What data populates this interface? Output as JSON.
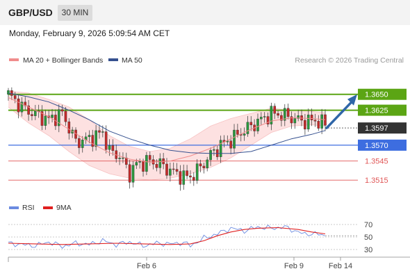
{
  "header": {
    "pair": "GBP/USD",
    "timeframe": "30 MIN"
  },
  "datetime": "Monday, February 9, 2026 5:09:54 AM CET",
  "legend": {
    "ma_bb": "MA 20 + Bollinger Bands",
    "ma50": "MA 50",
    "rsi": "RSI",
    "ma9": "9MA"
  },
  "credit": "Research © 2026 Trading Central",
  "colors": {
    "bb_fill": "#fde1e1",
    "ma20": "#f08c8c",
    "ma50": "#35508f",
    "resistance": "#5ba514",
    "support_blue": "#3d6de0",
    "support_red": "#e05555",
    "current": "#333333",
    "arrow": "#2f66a8",
    "rsi": "#6b8be0",
    "ma9": "#e02020",
    "candle_up": "#2a9a3e",
    "candle_down": "#c52a2a"
  },
  "chart_data": [
    {
      "type": "candlestick",
      "title": "",
      "ylim": [
        1.349,
        1.3665
      ],
      "x_ticks": [
        "Feb 6",
        "Feb 9",
        "Feb 14"
      ],
      "levels": [
        {
          "value": 1.365,
          "label": "1.3650",
          "kind": "resistance"
        },
        {
          "value": 1.3625,
          "label": "1.3625",
          "kind": "resistance"
        },
        {
          "value": 1.3597,
          "label": "1.3597",
          "kind": "current"
        },
        {
          "value": 1.357,
          "label": "1.3570",
          "kind": "pivot"
        },
        {
          "value": 1.3545,
          "label": "1.3545",
          "kind": "support"
        },
        {
          "value": 1.3515,
          "label": "1.3515",
          "kind": "support"
        }
      ],
      "last_price": 1.3597,
      "target_price": 1.365,
      "close_path": [
        [
          0,
          1.365
        ],
        [
          4,
          1.363
        ],
        [
          8,
          1.3618
        ],
        [
          12,
          1.361
        ],
        [
          16,
          1.362
        ],
        [
          20,
          1.3575
        ],
        [
          24,
          1.358
        ],
        [
          28,
          1.359
        ],
        [
          30,
          1.356
        ],
        [
          33,
          1.3553
        ],
        [
          36,
          1.3525
        ],
        [
          38,
          1.354
        ],
        [
          42,
          1.3545
        ],
        [
          45,
          1.354
        ],
        [
          48,
          1.353
        ],
        [
          52,
          1.352
        ],
        [
          54,
          1.352
        ],
        [
          57,
          1.3535
        ],
        [
          60,
          1.3555
        ],
        [
          63,
          1.357
        ],
        [
          66,
          1.3578
        ],
        [
          69,
          1.359
        ],
        [
          72,
          1.36
        ],
        [
          75,
          1.361
        ],
        [
          78,
          1.362
        ],
        [
          81,
          1.3618
        ],
        [
          84,
          1.3613
        ],
        [
          87,
          1.3608
        ],
        [
          90,
          1.3608
        ],
        [
          92,
          1.3608
        ],
        [
          94,
          1.3602
        ]
      ],
      "ma50": [
        [
          0,
          1.3652
        ],
        [
          6,
          1.3646
        ],
        [
          12,
          1.3638
        ],
        [
          18,
          1.3625
        ],
        [
          24,
          1.361
        ],
        [
          30,
          1.3592
        ],
        [
          36,
          1.358
        ],
        [
          42,
          1.357
        ],
        [
          48,
          1.3562
        ],
        [
          54,
          1.3558
        ],
        [
          60,
          1.3557
        ],
        [
          66,
          1.3557
        ],
        [
          72,
          1.356
        ],
        [
          78,
          1.357
        ],
        [
          84,
          1.358
        ],
        [
          90,
          1.3587
        ],
        [
          94,
          1.3593
        ]
      ],
      "ma20": [
        [
          0,
          1.3645
        ],
        [
          6,
          1.363
        ],
        [
          12,
          1.3615
        ],
        [
          18,
          1.3595
        ],
        [
          24,
          1.3575
        ],
        [
          30,
          1.3558
        ],
        [
          36,
          1.3548
        ],
        [
          42,
          1.3543
        ],
        [
          48,
          1.3545
        ],
        [
          54,
          1.3553
        ],
        [
          60,
          1.3565
        ],
        [
          66,
          1.358
        ],
        [
          72,
          1.3595
        ],
        [
          78,
          1.3608
        ],
        [
          84,
          1.3613
        ],
        [
          90,
          1.3612
        ],
        [
          94,
          1.361
        ]
      ],
      "bb_upper": [
        [
          0,
          1.3655
        ],
        [
          6,
          1.3652
        ],
        [
          12,
          1.3642
        ],
        [
          18,
          1.363
        ],
        [
          24,
          1.361
        ],
        [
          30,
          1.3585
        ],
        [
          36,
          1.3568
        ],
        [
          42,
          1.356
        ],
        [
          48,
          1.3565
        ],
        [
          54,
          1.358
        ],
        [
          60,
          1.36
        ],
        [
          66,
          1.3612
        ],
        [
          72,
          1.362
        ],
        [
          78,
          1.3628
        ],
        [
          84,
          1.3625
        ],
        [
          90,
          1.3623
        ],
        [
          94,
          1.3621
        ]
      ],
      "bb_lower": [
        [
          0,
          1.363
        ],
        [
          6,
          1.3605
        ],
        [
          12,
          1.3585
        ],
        [
          18,
          1.356
        ],
        [
          24,
          1.3538
        ],
        [
          30,
          1.3525
        ],
        [
          36,
          1.3518
        ],
        [
          42,
          1.3515
        ],
        [
          48,
          1.3518
        ],
        [
          54,
          1.3525
        ],
        [
          60,
          1.3535
        ],
        [
          66,
          1.355
        ],
        [
          72,
          1.357
        ],
        [
          78,
          1.359
        ],
        [
          84,
          1.36
        ],
        [
          90,
          1.3602
        ],
        [
          94,
          1.36
        ]
      ]
    },
    {
      "type": "line",
      "title": "",
      "ylim": [
        20,
        80
      ],
      "y_ticks": [
        70,
        50,
        30
      ],
      "series": [
        {
          "name": "RSI",
          "values": [
            [
              0,
              40
            ],
            [
              4,
              38
            ],
            [
              8,
              36
            ],
            [
              12,
              42
            ],
            [
              16,
              35
            ],
            [
              20,
              40
            ],
            [
              24,
              38
            ],
            [
              28,
              44
            ],
            [
              32,
              38
            ],
            [
              36,
              42
            ],
            [
              40,
              36
            ],
            [
              44,
              40
            ],
            [
              48,
              39
            ],
            [
              52,
              41
            ],
            [
              54,
              36
            ],
            [
              58,
              48
            ],
            [
              62,
              55
            ],
            [
              66,
              64
            ],
            [
              70,
              60
            ],
            [
              74,
              66
            ],
            [
              78,
              64
            ],
            [
              82,
              66
            ],
            [
              86,
              58
            ],
            [
              88,
              54
            ],
            [
              90,
              56
            ],
            [
              94,
              52
            ]
          ]
        },
        {
          "name": "9MA",
          "values": [
            [
              0,
              40
            ],
            [
              8,
              39
            ],
            [
              16,
              38
            ],
            [
              24,
              39
            ],
            [
              32,
              40
            ],
            [
              40,
              39
            ],
            [
              48,
              38
            ],
            [
              54,
              39
            ],
            [
              58,
              44
            ],
            [
              62,
              52
            ],
            [
              66,
              58
            ],
            [
              70,
              62
            ],
            [
              74,
              64
            ],
            [
              80,
              65
            ],
            [
              86,
              62
            ],
            [
              90,
              58
            ],
            [
              94,
              55
            ]
          ]
        }
      ]
    }
  ]
}
